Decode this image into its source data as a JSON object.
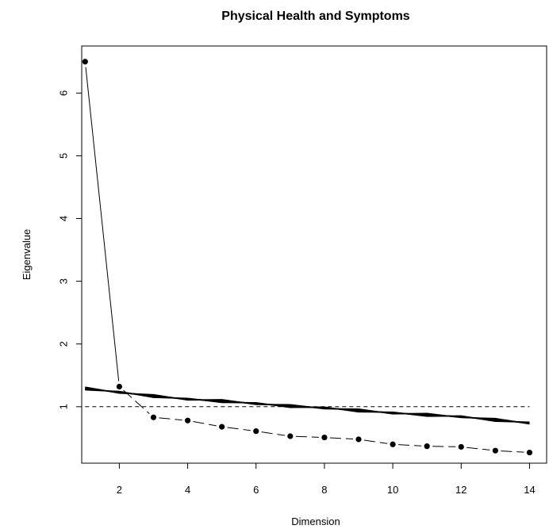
{
  "chart_data": {
    "type": "line",
    "title": "Physical Health and Symptoms",
    "xlabel": "Dimension",
    "ylabel": "Eigenvalue",
    "xlim": [
      0.9,
      14.5
    ],
    "ylim": [
      0.1,
      6.75
    ],
    "x_ticks": [
      2,
      4,
      6,
      8,
      10,
      12,
      14
    ],
    "y_ticks": [
      1,
      2,
      3,
      4,
      5,
      6
    ],
    "reference_line": {
      "y": 1,
      "style": "dashed"
    },
    "series": [
      {
        "style": "points-with-solid-lines",
        "x": [
          1,
          2
        ],
        "values": [
          6.5,
          1.32
        ]
      },
      {
        "style": "points-with-dashed-lines",
        "x": [
          2,
          3,
          4,
          5,
          6,
          7,
          8,
          9,
          10,
          11,
          12,
          13,
          14
        ],
        "values": [
          1.32,
          0.83,
          0.78,
          0.68,
          0.61,
          0.53,
          0.51,
          0.48,
          0.4,
          0.37,
          0.36,
          0.3,
          0.27
        ]
      },
      {
        "style": "band-of-simulated-lines",
        "x": [
          1,
          2,
          3,
          4,
          5,
          6,
          7,
          8,
          9,
          10,
          11,
          12,
          13,
          14
        ],
        "values": [
          1.29,
          1.23,
          1.17,
          1.12,
          1.09,
          1.05,
          1.01,
          0.98,
          0.94,
          0.9,
          0.87,
          0.84,
          0.79,
          0.74
        ]
      }
    ]
  }
}
